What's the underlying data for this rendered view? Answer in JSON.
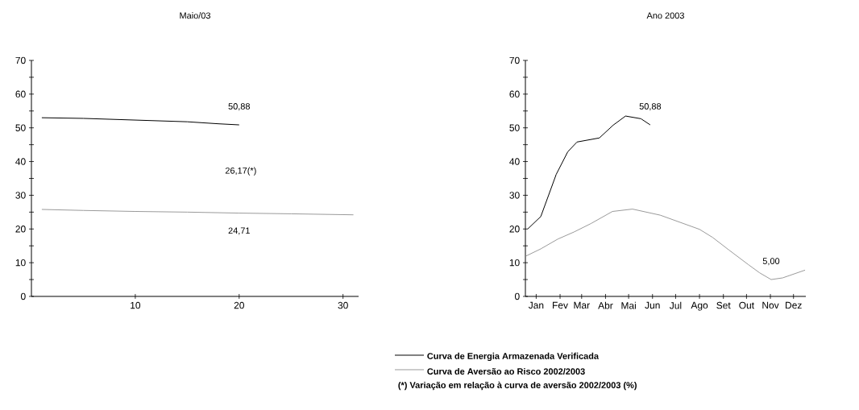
{
  "chart_data": [
    {
      "type": "line",
      "title": "Maio/03",
      "x": [
        1,
        5,
        10,
        15,
        18,
        20
      ],
      "xlim": [
        0,
        31.5
      ],
      "xticks": [
        10,
        20,
        30
      ],
      "ylim": [
        0,
        70
      ],
      "yticks": [
        0,
        {
          "value": 5,
          "label": null
        },
        10,
        {
          "value": 15,
          "label": null
        },
        20,
        {
          "value": 25,
          "label": null
        },
        30,
        {
          "value": 35,
          "label": null
        },
        40,
        {
          "value": 45,
          "label": null
        },
        50,
        {
          "value": 55,
          "label": null
        },
        60,
        {
          "value": 65,
          "label": null
        },
        70
      ],
      "series": [
        {
          "name": "Curva de Energia Armazenada Verificada",
          "color": "#000000",
          "values": [
            53.0,
            52.8,
            52.3,
            51.8,
            51.2,
            50.88
          ]
        },
        {
          "name": "Curva de Aversão ao Risco 2002/2003",
          "color": "#9a9a9a",
          "x": [
            1,
            5,
            10,
            15,
            20,
            25,
            31
          ],
          "values": [
            25.8,
            25.5,
            25.2,
            25.0,
            24.71,
            24.5,
            24.2
          ]
        }
      ],
      "legend": "bottom",
      "annotations": [
        {
          "text": "50,88",
          "x": 20,
          "y": 50.88
        },
        {
          "text": "24,71",
          "x": 20,
          "y": 24.71
        },
        "26,17(*)",
        "(*) Variação em relação à curva de aversão 2002/2003 (%)"
      ]
    },
    {
      "type": "line",
      "title": "Ano 2003",
      "xlim": [
        "2003-01-01",
        "2003-12-31"
      ],
      "xticks": [
        {
          "value": "2003-01-15",
          "label": "Jan"
        },
        {
          "value": "2003-02-15",
          "label": "Fev"
        },
        {
          "value": "2003-03-15",
          "label": "Mar"
        },
        {
          "value": "2003-04-15",
          "label": "Abr"
        },
        {
          "value": "2003-05-15",
          "label": "Mai"
        },
        {
          "value": "2003-06-15",
          "label": "Jun"
        },
        {
          "value": "2003-07-15",
          "label": "Jul"
        },
        {
          "value": "2003-08-15",
          "label": "Ago"
        },
        {
          "value": "2003-09-15",
          "label": "Set"
        },
        {
          "value": "2003-10-15",
          "label": "Out"
        },
        {
          "value": "2003-11-15",
          "label": "Nov"
        },
        {
          "value": "2003-12-15",
          "label": "Dez"
        }
      ],
      "ylim": [
        0,
        70
      ],
      "yticks": [
        0,
        {
          "value": 5,
          "label": null
        },
        10,
        {
          "value": 15,
          "label": null
        },
        20,
        {
          "value": 25,
          "label": null
        },
        30,
        {
          "value": 35,
          "label": null
        },
        40,
        {
          "value": 45,
          "label": null
        },
        50,
        {
          "value": 55,
          "label": null
        },
        60,
        {
          "value": 65,
          "label": null
        },
        70
      ],
      "series": [
        {
          "color": "#000000",
          "x": [
            "2003-01-04",
            "2003-01-21",
            "2003-02-10",
            "2003-02-25",
            "2003-03-09",
            "2003-04-07",
            "2003-04-25",
            "2003-05-11",
            "2003-05-31",
            "2003-06-12"
          ],
          "values": [
            20,
            23.7,
            36.2,
            42.9,
            45.8,
            47.0,
            50.8,
            53.5,
            52.7,
            50.88
          ]
        },
        {
          "color": "#9a9a9a",
          "x": [
            "2003-01-02",
            "2003-01-21",
            "2003-02-12",
            "2003-03-05",
            "2003-03-27",
            "2003-04-24",
            "2003-05-20",
            "2003-06-25",
            "2003-08-15",
            "2003-09-01",
            "2003-09-22",
            "2003-10-17",
            "2003-11-01",
            "2003-11-16",
            "2003-12-01",
            "2003-12-30"
          ],
          "values": [
            12,
            14.1,
            17,
            19.1,
            21.6,
            25.2,
            25.9,
            24.1,
            19.9,
            17.5,
            13.8,
            9.5,
            7,
            5.0,
            5.5,
            7.8
          ]
        }
      ],
      "annotations": [
        {
          "text": "50,88",
          "x": "2003-06-12",
          "y": 50.88
        },
        {
          "text": "5,00",
          "x": "2003-11-16",
          "y": 5.0
        }
      ]
    }
  ]
}
